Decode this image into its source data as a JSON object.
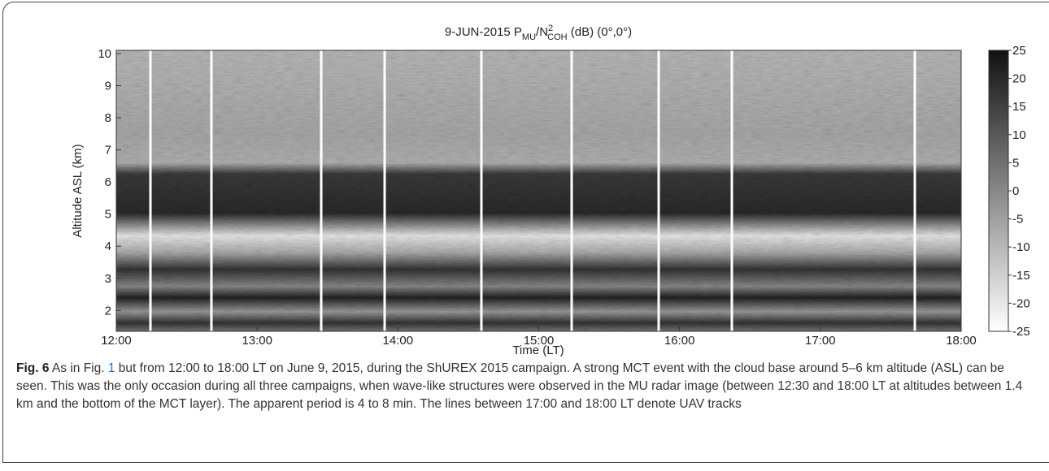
{
  "figure": {
    "title": {
      "pre": "9-JUN-2015 P",
      "sub1": "MU",
      "mid": "/N",
      "sup": "2",
      "sub2": "COH",
      "post": " (dB) (0°,0°)"
    },
    "ylabel": "Altitude ASL (km)",
    "xlabel": "Time (LT)",
    "ylim": [
      1.35,
      10.1
    ],
    "yticks": [
      2,
      3,
      4,
      5,
      6,
      7,
      8,
      9,
      10
    ],
    "xlim": [
      12,
      18
    ],
    "xticks": [
      {
        "value": 12,
        "label": "12:00"
      },
      {
        "value": 13,
        "label": "13:00"
      },
      {
        "value": 14,
        "label": "14:00"
      },
      {
        "value": 15,
        "label": "15:00"
      },
      {
        "value": 16,
        "label": "16:00"
      },
      {
        "value": 17,
        "label": "17:00"
      },
      {
        "value": 18,
        "label": "18:00"
      }
    ],
    "clim": [
      -25,
      25
    ],
    "cticks": [
      25,
      20,
      15,
      10,
      5,
      0,
      -5,
      -10,
      -15,
      -20,
      -25
    ]
  },
  "caption": {
    "label": "Fig. 6",
    "pre": " As in Fig. ",
    "ref": "1",
    "text": " but from 12:00 to 18:00 LT on June 9, 2015, during the ShUREX 2015 campaign. A strong MCT event with the cloud base around 5–6 km altitude (ASL) can be seen. This was the only occasion during all three campaigns, when wave-like structures were observed in the MU radar image (between 12:30 and 18:00 LT at altitudes between 1.4 km and the bottom of the MCT layer). The apparent period is 4 to 8 min. The lines between 17:00 and 18:00 LT denote UAV tracks"
  }
}
